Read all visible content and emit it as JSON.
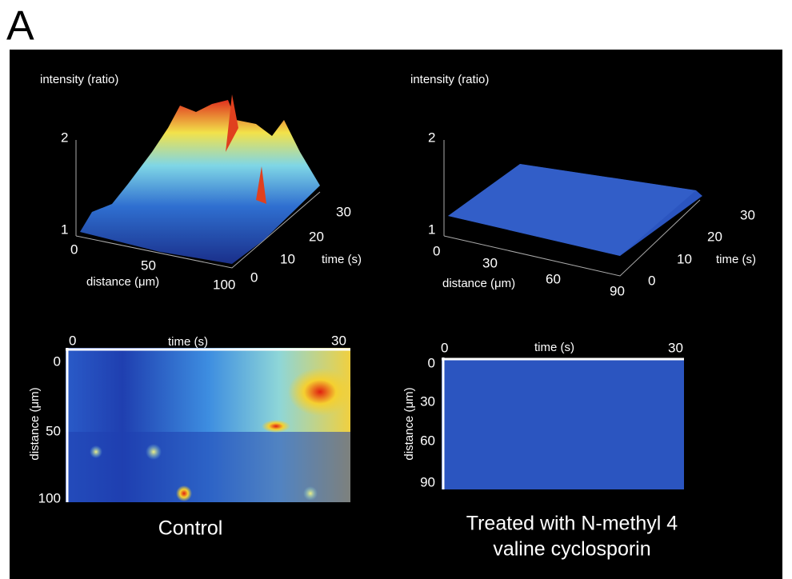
{
  "figure": {
    "label": "A",
    "panels": [
      {
        "z_label": "intensity (ratio)",
        "z_ticks": [
          "2",
          "1"
        ],
        "x_label": "distance (μm)",
        "x_ticks": [
          "0",
          "50",
          "100"
        ],
        "t_label": "time (s)",
        "t_ticks": [
          "0",
          "10",
          "20",
          "30"
        ]
      },
      {
        "z_label": "intensity (ratio)",
        "z_ticks": [
          "2",
          "1"
        ],
        "x_label": "distance (μm)",
        "x_ticks": [
          "0",
          "30",
          "60",
          "90"
        ],
        "t_label": "time (s)",
        "t_ticks": [
          "0",
          "10",
          "20",
          "30"
        ]
      },
      {
        "t_label": "time (s)",
        "t_ticks": [
          "0",
          "30"
        ],
        "y_label": "distance (μm)",
        "y_ticks": [
          "0",
          "50",
          "100"
        ]
      },
      {
        "t_label": "time (s)",
        "t_ticks": [
          "0",
          "30"
        ],
        "y_label": "distance (μm)",
        "y_ticks": [
          "0",
          "30",
          "60",
          "90"
        ]
      }
    ],
    "captions": [
      "Control",
      "Treated with N-methyl 4",
      "valine cyclosporin"
    ]
  }
}
